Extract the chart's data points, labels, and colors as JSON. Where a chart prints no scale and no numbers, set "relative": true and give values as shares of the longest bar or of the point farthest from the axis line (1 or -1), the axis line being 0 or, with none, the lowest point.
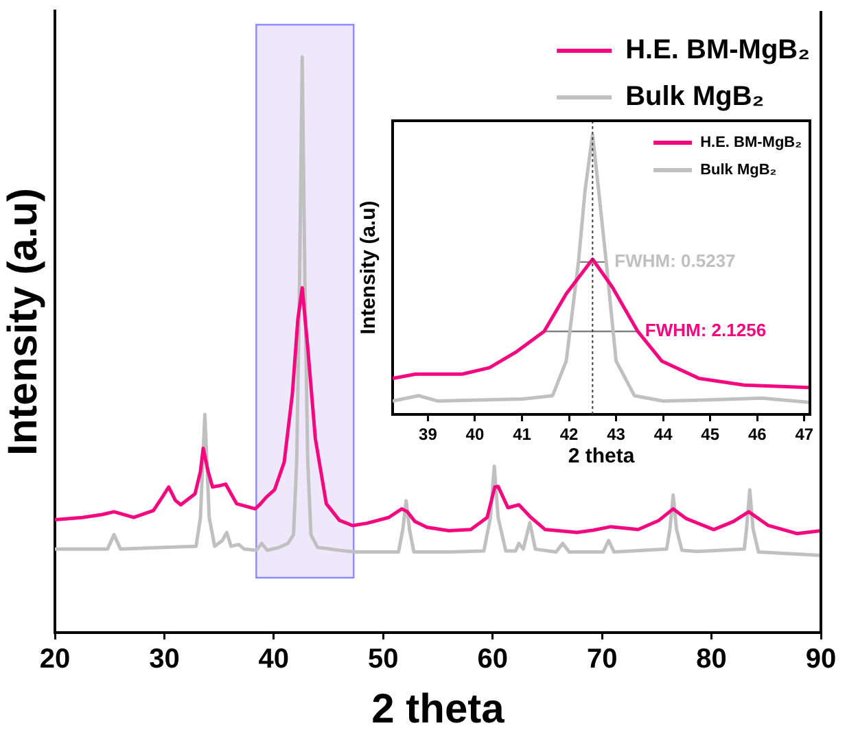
{
  "chart_data": [
    {
      "type": "line",
      "xlabel": "2 theta",
      "ylabel": "Intensity (a.u)",
      "relative": true,
      "xlim": [
        20,
        90
      ],
      "xticks": [
        20,
        30,
        40,
        50,
        60,
        70,
        80,
        90
      ],
      "legend": "top right",
      "grid": false,
      "series": [
        {
          "name": "H.E. BM-MgB₂",
          "color": "#f5077f",
          "x": [
            20,
            22.5,
            24.3,
            25.4,
            27.2,
            29,
            29.8,
            30.4,
            31,
            31.5,
            32.8,
            33.3,
            33.55,
            34,
            34.4,
            35,
            35.6,
            36.6,
            38.3,
            38.8,
            39.3,
            40.07,
            40.95,
            41.7,
            42.2,
            42.6,
            43.1,
            43.8,
            44.8,
            46,
            47.2,
            48.5,
            50.5,
            51.7,
            52.2,
            52.9,
            54,
            56,
            58,
            59.5,
            60.2,
            60.5,
            61.4,
            62.4,
            63.5,
            64.8,
            67.7,
            69.2,
            70.8,
            73.3,
            75.2,
            76.5,
            77.7,
            80.2,
            82,
            83.4,
            85.2,
            87.8,
            90
          ],
          "values": [
            0.196,
            0.2,
            0.205,
            0.21,
            0.2,
            0.212,
            0.235,
            0.253,
            0.23,
            0.222,
            0.241,
            0.28,
            0.32,
            0.28,
            0.253,
            0.255,
            0.258,
            0.224,
            0.215,
            0.224,
            0.235,
            0.248,
            0.296,
            0.415,
            0.544,
            0.599,
            0.496,
            0.337,
            0.224,
            0.195,
            0.186,
            0.19,
            0.2,
            0.215,
            0.21,
            0.193,
            0.183,
            0.177,
            0.179,
            0.2,
            0.253,
            0.254,
            0.217,
            0.222,
            0.2,
            0.179,
            0.174,
            0.178,
            0.184,
            0.179,
            0.195,
            0.215,
            0.198,
            0.179,
            0.193,
            0.21,
            0.186,
            0.172,
            0.177
          ]
        },
        {
          "name": "Bulk MgB₂",
          "color": "#c0c0c0",
          "x": [
            20,
            24.8,
            25.4,
            26,
            30,
            32.9,
            33.3,
            33.7,
            34.1,
            34.6,
            35.3,
            35.7,
            36.1,
            36.8,
            37.3,
            38.4,
            38.9,
            39.4,
            40.5,
            41.3,
            41.8,
            42.1,
            42.35,
            42.6,
            42.85,
            43.1,
            43.4,
            44,
            46,
            47.5,
            51.4,
            51.8,
            52.1,
            52.4,
            52.8,
            56,
            59.2,
            59.8,
            60.15,
            60.5,
            61.2,
            62.1,
            62.4,
            62.8,
            63.4,
            63.9,
            65.8,
            66.4,
            67,
            70.1,
            70.6,
            71.1,
            75.9,
            76.2,
            76.5,
            76.8,
            77.3,
            78.7,
            83,
            83.2,
            83.5,
            83.8,
            84.3,
            90
          ],
          "values": [
            0.145,
            0.145,
            0.17,
            0.145,
            0.148,
            0.15,
            0.2,
            0.379,
            0.2,
            0.15,
            0.16,
            0.174,
            0.15,
            0.153,
            0.145,
            0.143,
            0.155,
            0.143,
            0.148,
            0.155,
            0.17,
            0.3,
            0.6,
            1,
            0.6,
            0.3,
            0.17,
            0.148,
            0.143,
            0.14,
            0.14,
            0.18,
            0.229,
            0.18,
            0.14,
            0.14,
            0.142,
            0.2,
            0.289,
            0.2,
            0.142,
            0.142,
            0.155,
            0.145,
            0.191,
            0.145,
            0.14,
            0.155,
            0.14,
            0.14,
            0.16,
            0.14,
            0.145,
            0.18,
            0.239,
            0.18,
            0.143,
            0.141,
            0.145,
            0.18,
            0.248,
            0.18,
            0.14,
            0.134
          ]
        }
      ],
      "bands": [
        {
          "axis": "x",
          "from": 38.4,
          "to": 47.3,
          "color": "#e6dbf7"
        }
      ]
    },
    {
      "type": "line",
      "xlabel": "2 theta",
      "ylabel": "Intensity (a.u)",
      "relative": true,
      "xlim": [
        38.25,
        47.12
      ],
      "xticks": [
        39,
        40,
        41,
        42,
        43,
        44,
        45,
        46,
        47
      ],
      "legend": "top right",
      "grid": false,
      "series": [
        {
          "name": "H.E. BM-MgB₂",
          "color": "#f5077f",
          "x": [
            38.25,
            38.74,
            39.73,
            40.31,
            40.89,
            41.47,
            41.94,
            42.5,
            42.92,
            43.46,
            43.97,
            44.76,
            45.72,
            47.08,
            47.12
          ],
          "values": [
            0.129,
            0.144,
            0.144,
            0.167,
            0.225,
            0.297,
            0.431,
            0.555,
            0.455,
            0.297,
            0.191,
            0.129,
            0.105,
            0.096,
            0.096
          ]
        },
        {
          "name": "Bulk MgB₂",
          "color": "#c0c0c0",
          "x": [
            38.25,
            38.8,
            39.2,
            41,
            41.65,
            41.94,
            42.2,
            42.34,
            42.5,
            42.63,
            42.79,
            43,
            43.39,
            44,
            45,
            46.1,
            47.12
          ],
          "values": [
            0.048,
            0.067,
            0.048,
            0.055,
            0.067,
            0.191,
            0.545,
            0.8,
            1,
            0.8,
            0.545,
            0.191,
            0.067,
            0.048,
            0.052,
            0.058,
            0.043
          ]
        },
        {
          "color": "#808080",
          "x": [
            41.48,
            43.46
          ],
          "values": [
            0.297,
            0.297
          ]
        },
        {
          "color": "#808080",
          "x": [
            42.2,
            42.79
          ],
          "values": [
            0.545,
            0.545
          ]
        }
      ],
      "ref_lines": [
        {
          "axis": "x",
          "value": 42.5,
          "color": "#404040",
          "line_style": "dotted"
        }
      ],
      "annotations": [
        {
          "text": "FWHM: 2.1256",
          "x": 43.5,
          "y": 0.297
        },
        {
          "text": "FWHM: 0.5237",
          "x": 42.85,
          "y": 0.545
        }
      ]
    }
  ]
}
